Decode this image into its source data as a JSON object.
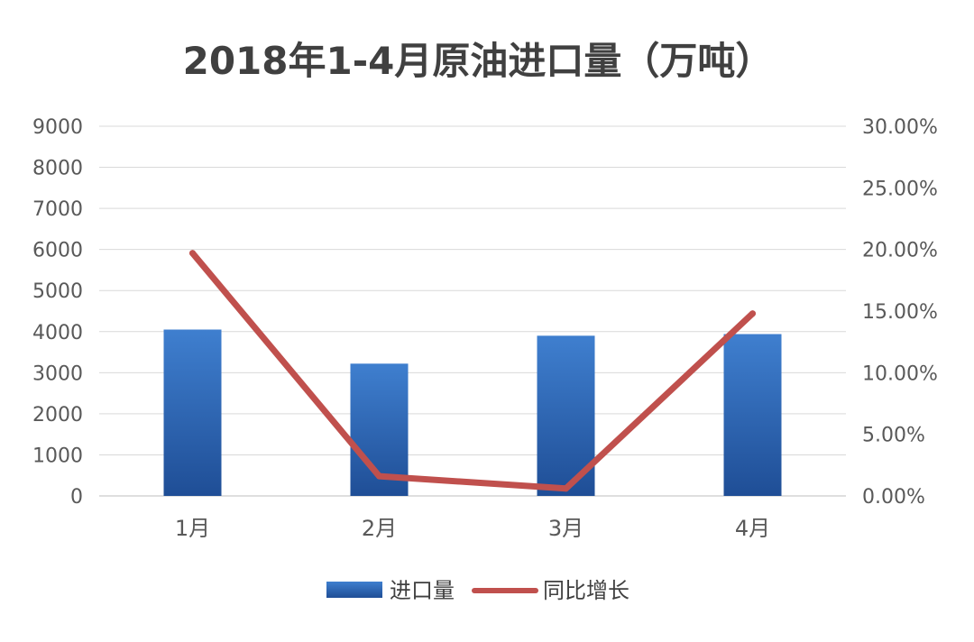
{
  "chart_data": {
    "type": "bar",
    "title": "2018年1-4月原油进口量（万吨）",
    "categories": [
      "1月",
      "2月",
      "3月",
      "4月"
    ],
    "y_left": {
      "range": [
        0,
        9000
      ],
      "ticks": [
        "0",
        "1000",
        "2000",
        "3000",
        "4000",
        "5000",
        "6000",
        "7000",
        "8000",
        "9000"
      ]
    },
    "y_right": {
      "range": [
        0,
        0.3
      ],
      "ticks": [
        "0.00%",
        "5.00%",
        "10.00%",
        "15.00%",
        "20.00%",
        "25.00%",
        "30.00%"
      ]
    },
    "grid": true,
    "legend_position": "bottom",
    "series": [
      {
        "name": "进口量",
        "type": "bar",
        "axis": "left",
        "color": "#2E69B8",
        "values": [
          4050,
          3220,
          3900,
          3940
        ]
      },
      {
        "name": "同比增长",
        "type": "line",
        "axis": "right",
        "color": "#C0504D",
        "values": [
          0.197,
          0.016,
          0.006,
          0.148
        ]
      }
    ]
  }
}
